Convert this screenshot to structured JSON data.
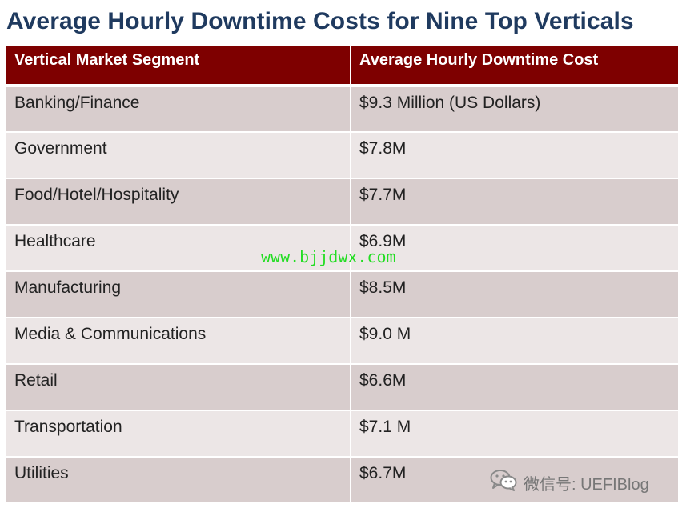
{
  "title": "Average Hourly Downtime Costs for Nine Top Verticals",
  "table": {
    "headers": [
      "Vertical Market Segment",
      "Average Hourly Downtime Cost"
    ],
    "rows": [
      [
        "Banking/Finance",
        "$9.3 Million (US Dollars)"
      ],
      [
        "Government",
        "$7.8M"
      ],
      [
        "Food/Hotel/Hospitality",
        "$7.7M"
      ],
      [
        "Healthcare",
        "$6.9M"
      ],
      [
        "Manufacturing",
        "$8.5M"
      ],
      [
        "Media & Communications",
        "$9.0 M"
      ],
      [
        "Retail",
        "$6.6M"
      ],
      [
        "Transportation",
        "$7.1 M"
      ],
      [
        "Utilities",
        "$6.7M"
      ]
    ]
  },
  "watermark": {
    "text": "www.bjjdwx.com",
    "color": "#22dd22"
  },
  "wechat": {
    "icon": "wechat-icon",
    "label": "微信号: UEFIBlog"
  },
  "colors": {
    "header_bg": "#7e0000",
    "title": "#1f3a5f",
    "row_dark": "#d8cdcd",
    "row_light": "#ece6e6"
  }
}
